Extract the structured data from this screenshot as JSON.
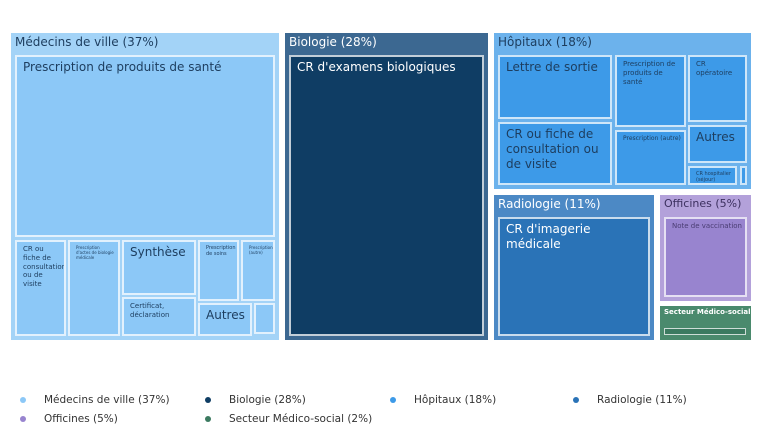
{
  "chart_data": {
    "type": "treemap",
    "groups": [
      {
        "name": "Médecins de ville (37%)",
        "percent": 37,
        "color": "#8cc8f7",
        "header_color": "#a3d3f7",
        "children": [
          "Prescription de produits de santé",
          "CR ou fiche de consultation ou de visite",
          "Prescription d'actes de biologie médicale",
          "Synthèse",
          "Certificat, déclaration",
          "Prescription de soins",
          "Prescription (autre)",
          "Autres",
          ""
        ]
      },
      {
        "name": "Biologie (28%)",
        "percent": 28,
        "color": "#0f3d64",
        "header_color": "#3c6891",
        "children": [
          "CR d'examens biologiques"
        ]
      },
      {
        "name": "Hôpitaux (18%)",
        "percent": 18,
        "color": "#3d9ae8",
        "header_color": "#6cb2ec",
        "children": [
          "Lettre de sortie",
          "CR ou fiche de consultation ou de visite",
          "Prescription de produits de santé",
          "Prescription (autre)",
          "CR opératoire",
          "Autres",
          "CR hospitalier (séjour)",
          ""
        ]
      },
      {
        "name": "Radiologie (11%)",
        "percent": 11,
        "color": "#2a73b7",
        "header_color": "#4c89c5",
        "children": [
          "CR d'imagerie médicale"
        ]
      },
      {
        "name": "Officines (5%)",
        "percent": 5,
        "color": "#9884cf",
        "header_color": "#b3a1da",
        "children": [
          "Note de vaccination"
        ]
      },
      {
        "name": "Secteur Médico-social (2%)",
        "percent": 2,
        "color": "#3b7a60",
        "header_color": "#4a8a6d",
        "children": [
          ""
        ]
      }
    ],
    "legend": [
      "Médecins de ville (37%)",
      "Biologie (28%)",
      "Hôpitaux (18%)",
      "Radiologie (11%)",
      "Officines (5%)",
      "Secteur Médico-social (2%)"
    ],
    "legend_position": "bottom"
  }
}
